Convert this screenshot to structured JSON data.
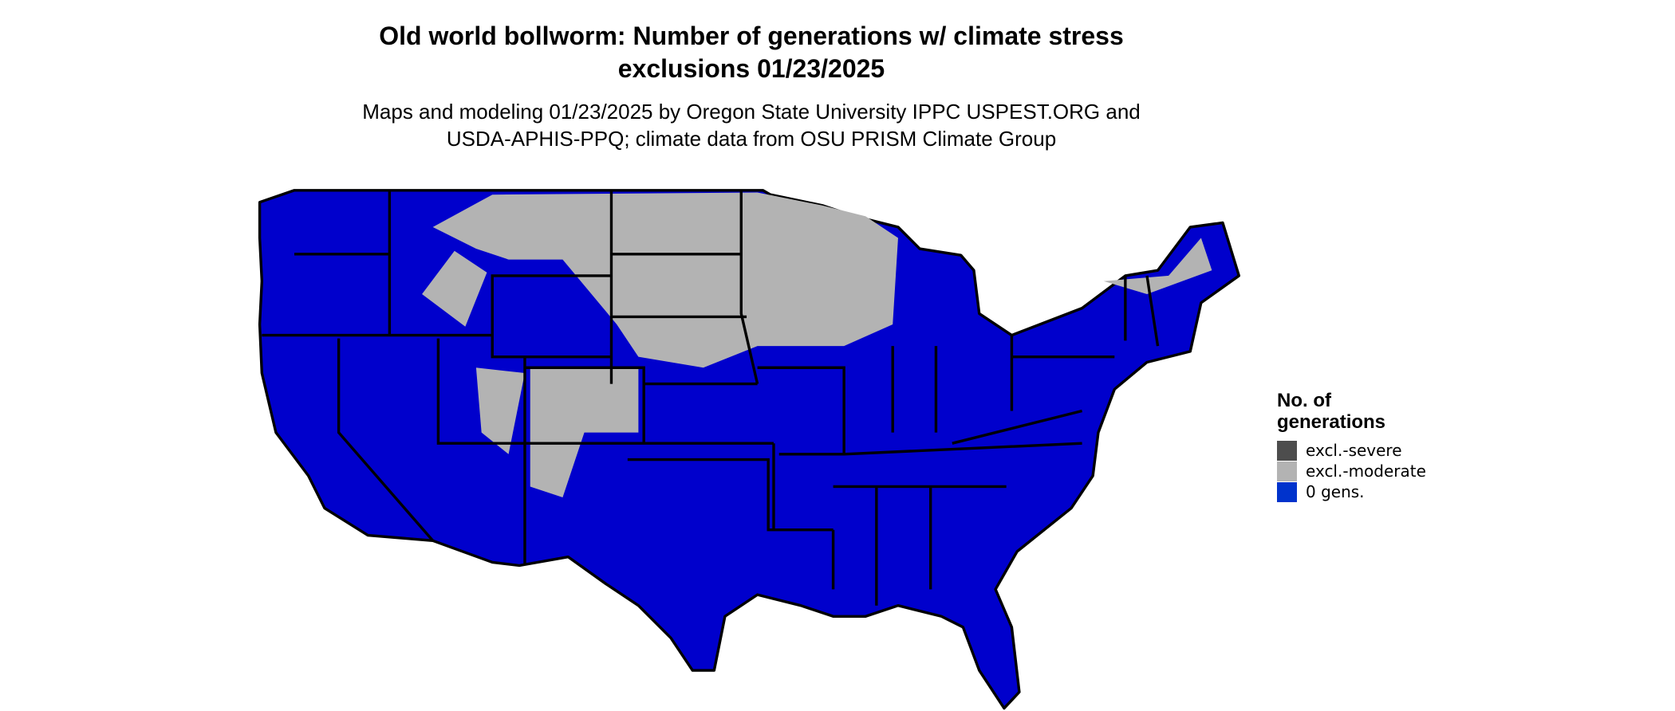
{
  "title": [
    "Old world bollworm: Number of generations w/ climate stress",
    "exclusions 01/23/2025"
  ],
  "subtitle": [
    "Maps and modeling 01/23/2025 by Oregon State University IPPC USPEST.ORG and",
    "USDA-APHIS-PPQ; climate data from OSU PRISM Climate Group"
  ],
  "legend": {
    "title": [
      "No. of",
      "generations"
    ],
    "items": [
      {
        "label": "excl.-severe",
        "color": "#4d4d4d"
      },
      {
        "label": "excl.-moderate",
        "color": "#b3b3b3"
      },
      {
        "label": "0 gens.",
        "color": "#0033cc"
      }
    ]
  }
}
